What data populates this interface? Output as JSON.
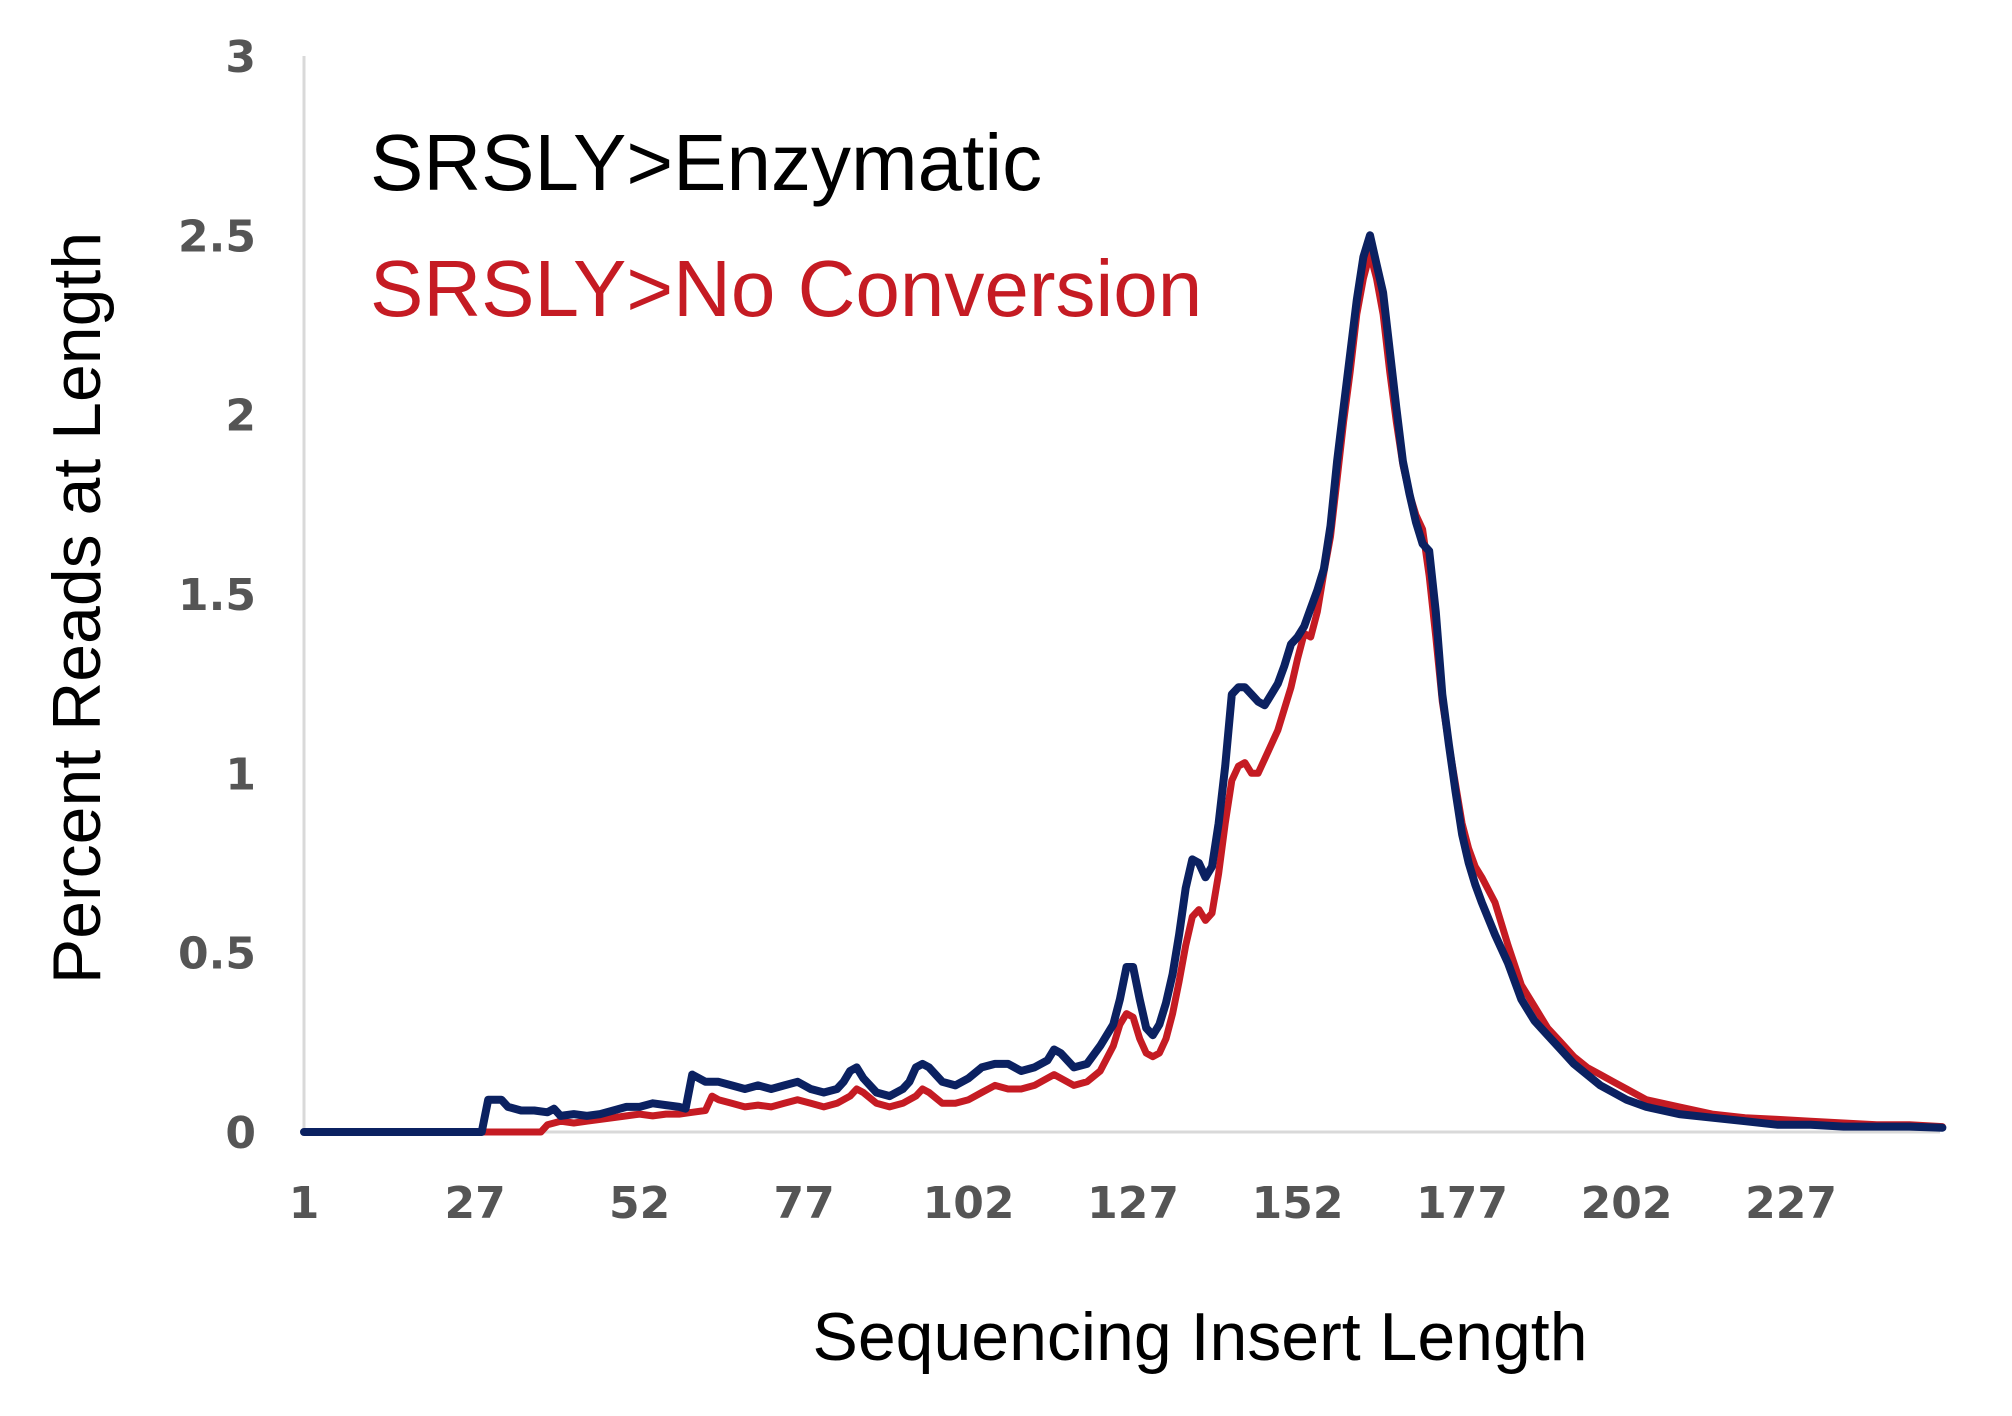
{
  "chart_data": {
    "type": "line",
    "xlabel": "Sequencing Insert Length",
    "ylabel": "Percent Reads at Length",
    "xlim": [
      1,
      250
    ],
    "ylim": [
      0,
      3
    ],
    "x_ticks": [
      "1",
      "27",
      "52",
      "77",
      "102",
      "127",
      "152",
      "177",
      "202",
      "227"
    ],
    "y_ticks": [
      "0",
      "0.5",
      "1",
      "1.5",
      "2",
      "2.5",
      "3"
    ],
    "grid": false,
    "legend": "top-left",
    "series": [
      {
        "name": "SRSLY>Enzymatic",
        "color": "#0b2161",
        "points": [
          [
            1,
            0
          ],
          [
            28,
            0
          ],
          [
            29,
            0.09
          ],
          [
            31,
            0.09
          ],
          [
            32,
            0.07
          ],
          [
            34,
            0.06
          ],
          [
            36,
            0.06
          ],
          [
            38,
            0.055
          ],
          [
            39,
            0.065
          ],
          [
            40,
            0.045
          ],
          [
            42,
            0.05
          ],
          [
            44,
            0.045
          ],
          [
            46,
            0.05
          ],
          [
            48,
            0.06
          ],
          [
            50,
            0.07
          ],
          [
            52,
            0.07
          ],
          [
            54,
            0.08
          ],
          [
            56,
            0.075
          ],
          [
            58,
            0.07
          ],
          [
            59,
            0.065
          ],
          [
            60,
            0.16
          ],
          [
            62,
            0.14
          ],
          [
            64,
            0.14
          ],
          [
            66,
            0.13
          ],
          [
            68,
            0.12
          ],
          [
            70,
            0.13
          ],
          [
            72,
            0.12
          ],
          [
            74,
            0.13
          ],
          [
            76,
            0.14
          ],
          [
            78,
            0.12
          ],
          [
            80,
            0.11
          ],
          [
            82,
            0.12
          ],
          [
            83,
            0.14
          ],
          [
            84,
            0.17
          ],
          [
            85,
            0.18
          ],
          [
            86,
            0.15
          ],
          [
            88,
            0.11
          ],
          [
            90,
            0.1
          ],
          [
            92,
            0.12
          ],
          [
            93,
            0.14
          ],
          [
            94,
            0.18
          ],
          [
            95,
            0.19
          ],
          [
            96,
            0.18
          ],
          [
            98,
            0.14
          ],
          [
            100,
            0.13
          ],
          [
            102,
            0.15
          ],
          [
            104,
            0.18
          ],
          [
            106,
            0.19
          ],
          [
            108,
            0.19
          ],
          [
            110,
            0.17
          ],
          [
            112,
            0.18
          ],
          [
            114,
            0.2
          ],
          [
            115,
            0.23
          ],
          [
            116,
            0.22
          ],
          [
            118,
            0.18
          ],
          [
            120,
            0.19
          ],
          [
            122,
            0.24
          ],
          [
            124,
            0.3
          ],
          [
            125,
            0.37
          ],
          [
            126,
            0.46
          ],
          [
            127,
            0.46
          ],
          [
            128,
            0.37
          ],
          [
            129,
            0.29
          ],
          [
            130,
            0.27
          ],
          [
            131,
            0.3
          ],
          [
            132,
            0.36
          ],
          [
            133,
            0.44
          ],
          [
            134,
            0.55
          ],
          [
            135,
            0.68
          ],
          [
            136,
            0.76
          ],
          [
            137,
            0.75
          ],
          [
            138,
            0.71
          ],
          [
            139,
            0.74
          ],
          [
            140,
            0.86
          ],
          [
            141,
            1.02
          ],
          [
            142,
            1.22
          ],
          [
            143,
            1.24
          ],
          [
            144,
            1.24
          ],
          [
            145,
            1.22
          ],
          [
            146,
            1.2
          ],
          [
            147,
            1.19
          ],
          [
            148,
            1.22
          ],
          [
            149,
            1.25
          ],
          [
            150,
            1.3
          ],
          [
            151,
            1.36
          ],
          [
            152,
            1.38
          ],
          [
            153,
            1.41
          ],
          [
            154,
            1.46
          ],
          [
            155,
            1.51
          ],
          [
            156,
            1.57
          ],
          [
            157,
            1.69
          ],
          [
            158,
            1.87
          ],
          [
            159,
            2.02
          ],
          [
            160,
            2.17
          ],
          [
            161,
            2.32
          ],
          [
            162,
            2.44
          ],
          [
            163,
            2.5
          ],
          [
            164,
            2.42
          ],
          [
            165,
            2.34
          ],
          [
            166,
            2.18
          ],
          [
            167,
            2.02
          ],
          [
            168,
            1.87
          ],
          [
            169,
            1.78
          ],
          [
            170,
            1.7
          ],
          [
            171,
            1.64
          ],
          [
            172,
            1.62
          ],
          [
            173,
            1.45
          ],
          [
            174,
            1.22
          ],
          [
            175,
            1.08
          ],
          [
            176,
            0.95
          ],
          [
            177,
            0.83
          ],
          [
            178,
            0.75
          ],
          [
            179,
            0.69
          ],
          [
            180,
            0.64
          ],
          [
            182,
            0.55
          ],
          [
            184,
            0.47
          ],
          [
            186,
            0.37
          ],
          [
            188,
            0.31
          ],
          [
            190,
            0.27
          ],
          [
            192,
            0.23
          ],
          [
            194,
            0.19
          ],
          [
            196,
            0.16
          ],
          [
            198,
            0.13
          ],
          [
            200,
            0.11
          ],
          [
            202,
            0.09
          ],
          [
            205,
            0.07
          ],
          [
            210,
            0.05
          ],
          [
            215,
            0.04
          ],
          [
            220,
            0.03
          ],
          [
            225,
            0.02
          ],
          [
            230,
            0.02
          ],
          [
            235,
            0.015
          ],
          [
            240,
            0.015
          ],
          [
            245,
            0.015
          ],
          [
            250,
            0.012
          ]
        ]
      },
      {
        "name": "SRSLY>No Conversion",
        "color": "#c51b23",
        "points": [
          [
            1,
            0
          ],
          [
            29,
            0
          ],
          [
            37,
            0
          ],
          [
            38,
            0.02
          ],
          [
            40,
            0.03
          ],
          [
            42,
            0.025
          ],
          [
            44,
            0.03
          ],
          [
            46,
            0.035
          ],
          [
            48,
            0.04
          ],
          [
            50,
            0.045
          ],
          [
            52,
            0.05
          ],
          [
            54,
            0.045
          ],
          [
            56,
            0.05
          ],
          [
            58,
            0.05
          ],
          [
            60,
            0.055
          ],
          [
            62,
            0.06
          ],
          [
            63,
            0.1
          ],
          [
            64,
            0.09
          ],
          [
            66,
            0.08
          ],
          [
            68,
            0.07
          ],
          [
            70,
            0.075
          ],
          [
            72,
            0.07
          ],
          [
            74,
            0.08
          ],
          [
            76,
            0.09
          ],
          [
            78,
            0.08
          ],
          [
            80,
            0.07
          ],
          [
            82,
            0.08
          ],
          [
            84,
            0.1
          ],
          [
            85,
            0.12
          ],
          [
            86,
            0.11
          ],
          [
            88,
            0.08
          ],
          [
            90,
            0.07
          ],
          [
            92,
            0.08
          ],
          [
            94,
            0.1
          ],
          [
            95,
            0.12
          ],
          [
            96,
            0.11
          ],
          [
            98,
            0.08
          ],
          [
            100,
            0.08
          ],
          [
            102,
            0.09
          ],
          [
            104,
            0.11
          ],
          [
            106,
            0.13
          ],
          [
            108,
            0.12
          ],
          [
            110,
            0.12
          ],
          [
            112,
            0.13
          ],
          [
            114,
            0.15
          ],
          [
            115,
            0.16
          ],
          [
            116,
            0.15
          ],
          [
            118,
            0.13
          ],
          [
            120,
            0.14
          ],
          [
            122,
            0.17
          ],
          [
            124,
            0.24
          ],
          [
            125,
            0.3
          ],
          [
            126,
            0.33
          ],
          [
            127,
            0.32
          ],
          [
            128,
            0.26
          ],
          [
            129,
            0.22
          ],
          [
            130,
            0.21
          ],
          [
            131,
            0.22
          ],
          [
            132,
            0.26
          ],
          [
            133,
            0.33
          ],
          [
            134,
            0.42
          ],
          [
            135,
            0.52
          ],
          [
            136,
            0.6
          ],
          [
            137,
            0.62
          ],
          [
            138,
            0.59
          ],
          [
            139,
            0.61
          ],
          [
            140,
            0.72
          ],
          [
            141,
            0.86
          ],
          [
            142,
            0.98
          ],
          [
            143,
            1.02
          ],
          [
            144,
            1.03
          ],
          [
            145,
            1.0
          ],
          [
            146,
            1.0
          ],
          [
            147,
            1.04
          ],
          [
            148,
            1.08
          ],
          [
            149,
            1.12
          ],
          [
            150,
            1.18
          ],
          [
            151,
            1.24
          ],
          [
            152,
            1.32
          ],
          [
            153,
            1.39
          ],
          [
            154,
            1.38
          ],
          [
            155,
            1.45
          ],
          [
            156,
            1.56
          ],
          [
            157,
            1.66
          ],
          [
            158,
            1.82
          ],
          [
            159,
            1.98
          ],
          [
            160,
            2.12
          ],
          [
            161,
            2.28
          ],
          [
            162,
            2.38
          ],
          [
            163,
            2.45
          ],
          [
            164,
            2.38
          ],
          [
            165,
            2.28
          ],
          [
            166,
            2.12
          ],
          [
            167,
            1.98
          ],
          [
            168,
            1.86
          ],
          [
            169,
            1.78
          ],
          [
            170,
            1.72
          ],
          [
            171,
            1.68
          ],
          [
            172,
            1.55
          ],
          [
            173,
            1.38
          ],
          [
            174,
            1.2
          ],
          [
            175,
            1.08
          ],
          [
            176,
            0.97
          ],
          [
            177,
            0.86
          ],
          [
            178,
            0.79
          ],
          [
            179,
            0.74
          ],
          [
            180,
            0.71
          ],
          [
            182,
            0.64
          ],
          [
            184,
            0.52
          ],
          [
            186,
            0.41
          ],
          [
            188,
            0.35
          ],
          [
            190,
            0.29
          ],
          [
            192,
            0.25
          ],
          [
            194,
            0.21
          ],
          [
            196,
            0.18
          ],
          [
            198,
            0.16
          ],
          [
            200,
            0.14
          ],
          [
            202,
            0.12
          ],
          [
            205,
            0.09
          ],
          [
            210,
            0.07
          ],
          [
            215,
            0.05
          ],
          [
            220,
            0.04
          ],
          [
            225,
            0.035
          ],
          [
            230,
            0.03
          ],
          [
            235,
            0.025
          ],
          [
            240,
            0.02
          ],
          [
            245,
            0.02
          ],
          [
            250,
            0.015
          ]
        ]
      }
    ]
  }
}
